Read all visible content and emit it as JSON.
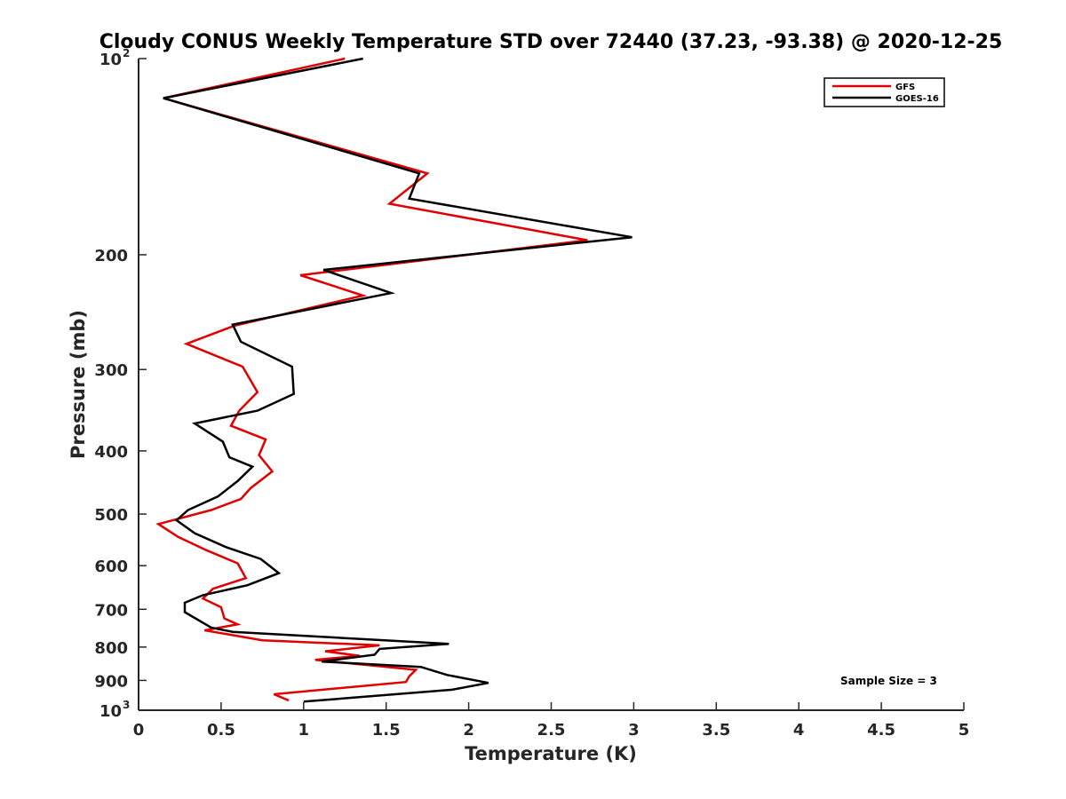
{
  "chart_data": {
    "type": "line",
    "title": "Cloudy CONUS Weekly Temperature STD over 72440 (37.23, -93.38) @ 2020-12-25",
    "xlabel": "Temperature (K)",
    "ylabel": "Pressure (mb)",
    "xlim": [
      0,
      5
    ],
    "ylim": [
      100,
      1000
    ],
    "y_scale": "log",
    "y_reversed": true,
    "grid": false,
    "legend_position": "top-right",
    "x_ticks": [
      {
        "value": 0,
        "label": "0"
      },
      {
        "value": 0.5,
        "label": "0.5"
      },
      {
        "value": 1,
        "label": "1"
      },
      {
        "value": 1.5,
        "label": "1.5"
      },
      {
        "value": 2,
        "label": "2"
      },
      {
        "value": 2.5,
        "label": "2.5"
      },
      {
        "value": 3,
        "label": "3"
      },
      {
        "value": 3.5,
        "label": "3.5"
      },
      {
        "value": 4,
        "label": "4"
      },
      {
        "value": 4.5,
        "label": "4.5"
      },
      {
        "value": 5,
        "label": "5"
      }
    ],
    "y_ticks": [
      {
        "value": 100,
        "label": "10",
        "exp": "2"
      },
      {
        "value": 200,
        "label": "200"
      },
      {
        "value": 300,
        "label": "300"
      },
      {
        "value": 400,
        "label": "400"
      },
      {
        "value": 500,
        "label": "500"
      },
      {
        "value": 600,
        "label": "600"
      },
      {
        "value": 700,
        "label": "700"
      },
      {
        "value": 800,
        "label": "800"
      },
      {
        "value": 900,
        "label": "900"
      },
      {
        "value": 1000,
        "label": "10",
        "exp": "3"
      }
    ],
    "series": [
      {
        "name": "GFS",
        "color": "#e00000",
        "points": [
          [
            1.25,
            100
          ],
          [
            0.15,
            115
          ],
          [
            1.75,
            150
          ],
          [
            1.52,
            167
          ],
          [
            2.72,
            190
          ],
          [
            0.98,
            215
          ],
          [
            1.36,
            231
          ],
          [
            0.58,
            257
          ],
          [
            0.29,
            274
          ],
          [
            0.63,
            297
          ],
          [
            0.72,
            325
          ],
          [
            0.61,
            347
          ],
          [
            0.56,
            366
          ],
          [
            0.77,
            384
          ],
          [
            0.73,
            406
          ],
          [
            0.81,
            430
          ],
          [
            0.68,
            456
          ],
          [
            0.62,
            474
          ],
          [
            0.44,
            493
          ],
          [
            0.12,
            518
          ],
          [
            0.24,
            542
          ],
          [
            0.41,
            568
          ],
          [
            0.6,
            595
          ],
          [
            0.65,
            627
          ],
          [
            0.45,
            651
          ],
          [
            0.39,
            674
          ],
          [
            0.5,
            695
          ],
          [
            0.52,
            723
          ],
          [
            0.6,
            738
          ],
          [
            0.4,
            754
          ],
          [
            0.75,
            781
          ],
          [
            1.46,
            795
          ],
          [
            1.13,
            812
          ],
          [
            1.34,
            825
          ],
          [
            1.07,
            837
          ],
          [
            1.68,
            867
          ],
          [
            1.64,
            887
          ],
          [
            1.62,
            905
          ],
          [
            0.82,
            945
          ],
          [
            0.91,
            966
          ]
        ]
      },
      {
        "name": "GOES-16",
        "color": "#000000",
        "points": [
          [
            1.36,
            100
          ],
          [
            0.15,
            115
          ],
          [
            1.7,
            150
          ],
          [
            1.64,
            164
          ],
          [
            2.99,
            188
          ],
          [
            1.12,
            211
          ],
          [
            1.53,
            229
          ],
          [
            0.57,
            256
          ],
          [
            0.62,
            272
          ],
          [
            0.93,
            297
          ],
          [
            0.94,
            327
          ],
          [
            0.72,
            347
          ],
          [
            0.34,
            363
          ],
          [
            0.51,
            387
          ],
          [
            0.55,
            409
          ],
          [
            0.69,
            423
          ],
          [
            0.6,
            445
          ],
          [
            0.48,
            470
          ],
          [
            0.3,
            493
          ],
          [
            0.23,
            511
          ],
          [
            0.34,
            535
          ],
          [
            0.53,
            562
          ],
          [
            0.74,
            586
          ],
          [
            0.85,
            616
          ],
          [
            0.66,
            643
          ],
          [
            0.39,
            666
          ],
          [
            0.28,
            684
          ],
          [
            0.28,
            707
          ],
          [
            0.44,
            747
          ],
          [
            0.57,
            758
          ],
          [
            1.88,
            791
          ],
          [
            1.46,
            805
          ],
          [
            1.43,
            822
          ],
          [
            1.11,
            842
          ],
          [
            1.71,
            858
          ],
          [
            1.87,
            883
          ],
          [
            2.12,
            908
          ],
          [
            1.9,
            930
          ],
          [
            1.0,
            970
          ]
        ]
      }
    ],
    "annotation": "Sample Size = 3"
  }
}
